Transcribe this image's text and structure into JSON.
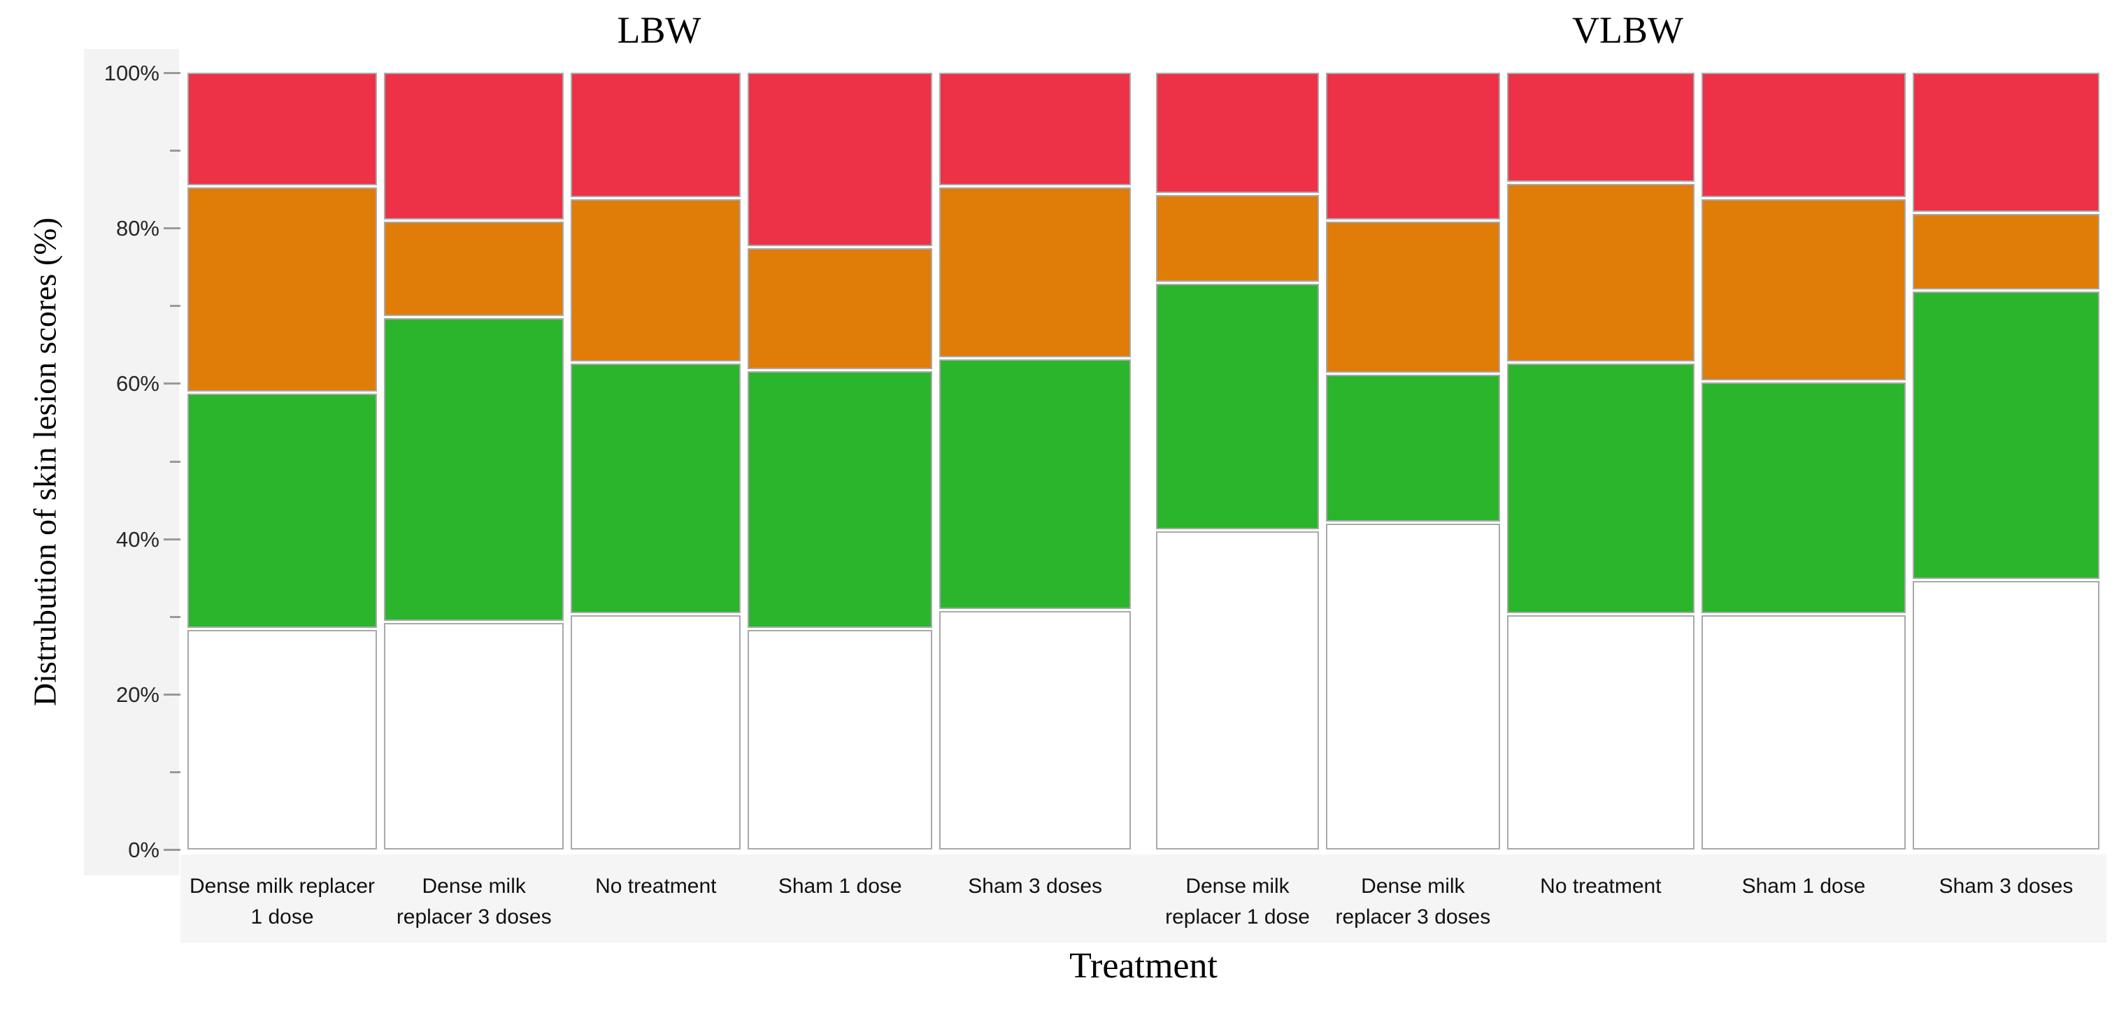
{
  "figure": {
    "kind": "mosaic stacked bar chart, two panels"
  },
  "colors": {
    "segment_fills_bottom_to_top": [
      "#ffffff",
      "#2ab52d",
      "#e07c08",
      "#ed3147"
    ],
    "segment_border": "#a9a9a9",
    "axis_strip_bg": "#f3f3f3",
    "label_strip_bg": "#f5f5f5",
    "tick_color": "#9a9a9a",
    "tick_label_color": "#262626"
  },
  "axis": {
    "major_ticks": [
      {
        "pct": 0,
        "label": "0%"
      },
      {
        "pct": 20,
        "label": "20%"
      },
      {
        "pct": 40,
        "label": "40%"
      },
      {
        "pct": 60,
        "label": "60%"
      },
      {
        "pct": 80,
        "label": "80%"
      },
      {
        "pct": 100,
        "label": "100%"
      }
    ],
    "minor_tick_pcts": [
      10,
      30,
      50,
      70,
      90
    ]
  },
  "chart_data": {
    "type": "bar",
    "subtype": "stacked-100pct-mosaic",
    "title": "",
    "ylabel": "Distrubution of skin lesion scores (%)",
    "xlabel": "Treatment",
    "ylim": [
      0,
      100
    ],
    "grid": false,
    "legend": "none",
    "series_bottom_to_top": [
      "white",
      "green",
      "orange",
      "red"
    ],
    "panels": [
      {
        "title": "LBW",
        "bars": [
          {
            "category": "Dense milk replacer 1 dose",
            "width_rel": 20.1,
            "values": [
              28.5,
              30.5,
              26.5,
              14.5
            ]
          },
          {
            "category": "Dense milk replacer 3 doses",
            "width_rel": 19.1,
            "values": [
              29.5,
              39.5,
              12.0,
              19.0
            ]
          },
          {
            "category": "No treatment",
            "width_rel": 18.0,
            "values": [
              30.5,
              32.5,
              21.0,
              16.0
            ]
          },
          {
            "category": "Sham 1 dose",
            "width_rel": 19.6,
            "values": [
              28.5,
              33.5,
              15.5,
              22.5
            ]
          },
          {
            "category": "Sham 3 doses",
            "width_rel": 20.3,
            "values": [
              31.0,
              32.5,
              22.0,
              14.5
            ]
          }
        ]
      },
      {
        "title": "VLBW",
        "bars": [
          {
            "category": "Dense milk replacer 1 dose",
            "width_rel": 17.8,
            "values": [
              41.5,
              32.0,
              11.0,
              15.5
            ]
          },
          {
            "category": "Dense milk replacer 3 doses",
            "width_rel": 19.0,
            "values": [
              42.5,
              19.0,
              19.5,
              19.0
            ]
          },
          {
            "category": "No treatment",
            "width_rel": 20.5,
            "values": [
              30.5,
              32.5,
              23.0,
              14.0
            ]
          },
          {
            "category": "Sham 1 dose",
            "width_rel": 22.3,
            "values": [
              30.5,
              30.0,
              23.5,
              16.0
            ]
          },
          {
            "category": "Sham 3 doses",
            "width_rel": 20.4,
            "values": [
              35.0,
              37.5,
              9.5,
              18.0
            ]
          }
        ]
      }
    ]
  }
}
